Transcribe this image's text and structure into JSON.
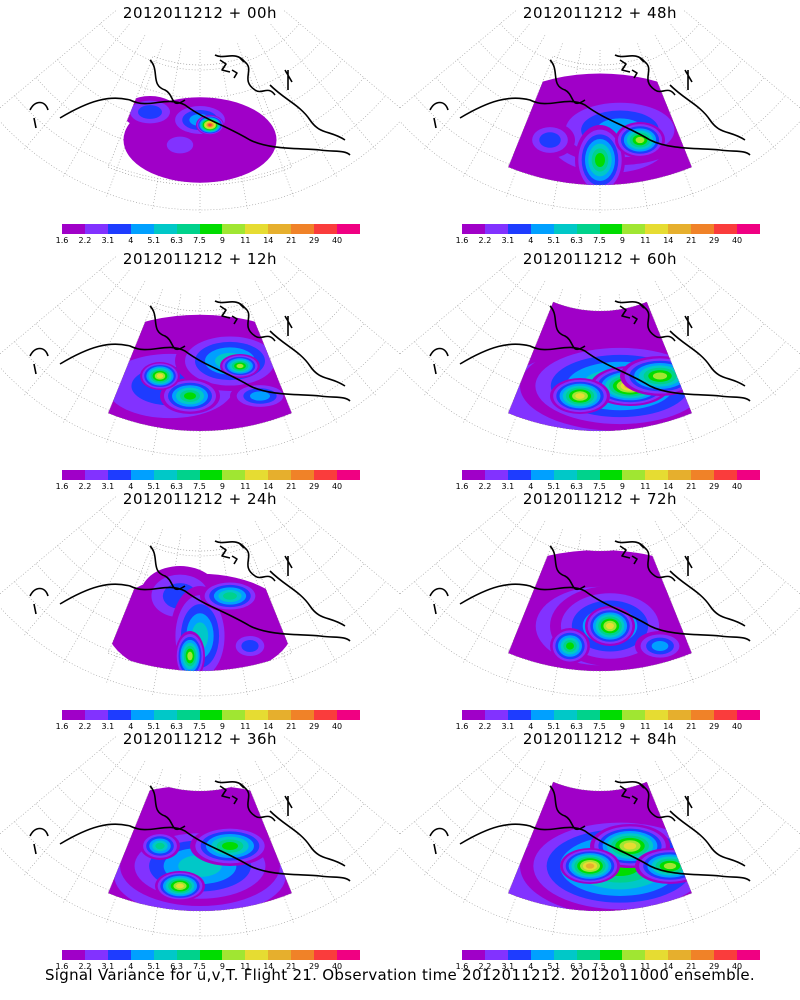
{
  "panels": [
    {
      "title": "2012011212 + 00h",
      "spread": 0
    },
    {
      "title": "2012011212 + 48h",
      "spread": 4
    },
    {
      "title": "2012011212 + 12h",
      "spread": 1
    },
    {
      "title": "2012011212 + 60h",
      "spread": 5
    },
    {
      "title": "2012011212 + 24h",
      "spread": 2
    },
    {
      "title": "2012011212 + 72h",
      "spread": 6
    },
    {
      "title": "2012011212 + 36h",
      "spread": 3
    },
    {
      "title": "2012011212 + 84h",
      "spread": 7
    }
  ],
  "colorbar": {
    "colors": [
      "#a000c8",
      "#8232ff",
      "#1e3cff",
      "#00a0ff",
      "#00c8c8",
      "#00d28c",
      "#00dc00",
      "#a0e632",
      "#e6dc32",
      "#e6af2d",
      "#f08228",
      "#fa3c3c",
      "#f00082"
    ],
    "labels": [
      "1.6",
      "2.2",
      "3.1",
      "4",
      "5.1",
      "6.3",
      "7.5",
      "9",
      "11",
      "14",
      "21",
      "29",
      "40"
    ]
  },
  "caption": "Signal Variance for u,v,T. Flight 21. Observation time 2012011212. 2012011000 ensemble."
}
